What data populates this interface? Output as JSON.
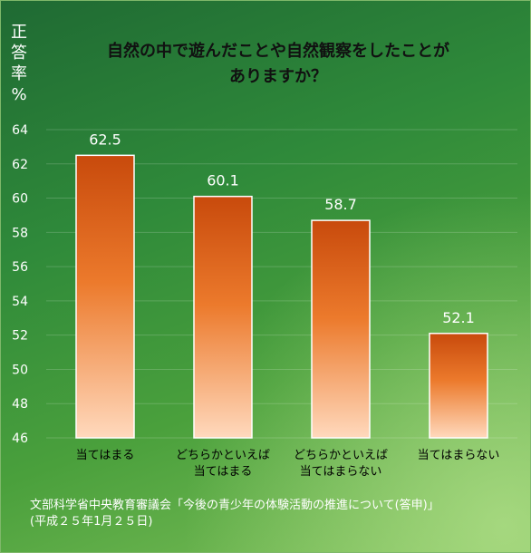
{
  "chart_data": {
    "type": "bar",
    "title_lines": [
      "自然の中で遊んだことや自然観察をしたことが",
      "ありますか？"
    ],
    "ylabel": "正答率%",
    "categories": [
      [
        "当てはまる"
      ],
      [
        "どちらかといえば",
        "当てはまる"
      ],
      [
        "どちらかといえば",
        "当てはまらない"
      ],
      [
        "当てはまらない"
      ]
    ],
    "values": [
      62.5,
      60.1,
      58.7,
      52.1
    ],
    "value_labels": [
      "62.5",
      "60.1",
      "58.7",
      "52.1"
    ],
    "ylim": [
      46,
      64
    ],
    "yticks": [
      46,
      48,
      50,
      52,
      54,
      56,
      58,
      60,
      62,
      64
    ],
    "grid": true,
    "bar_colors": {
      "top": "#c84a0c",
      "mid": "#ec7a2c",
      "bottom": "#ffd9bd"
    }
  },
  "source": {
    "line1": "文部科学省中央教育審議会「今後の青少年の体験活動の推進について(答申)」",
    "line2": "(平成２５年1月２５日)"
  }
}
